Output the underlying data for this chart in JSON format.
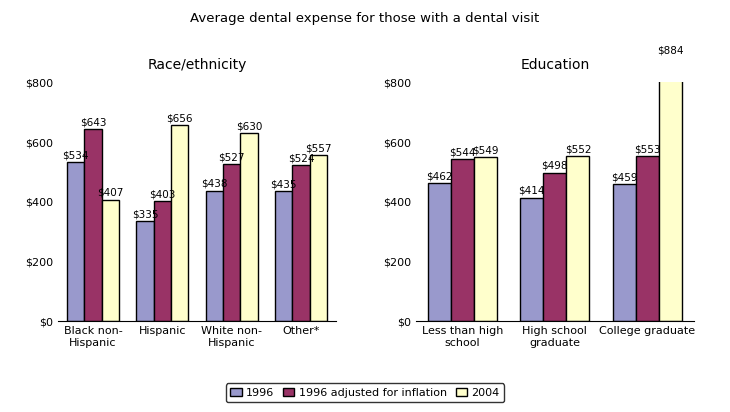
{
  "title": "Average dental expense for those with a dental visit",
  "left_subtitle": "Race/ethnicity",
  "right_subtitle": "Education",
  "left_categories": [
    "Black non-\nHispanic",
    "Hispanic",
    "White non-\nHispanic",
    "Other*"
  ],
  "right_categories": [
    "Less than high\nschool",
    "High school\ngraduate",
    "College graduate"
  ],
  "left_values": {
    "1996": [
      534,
      335,
      438,
      435
    ],
    "1996_adjusted": [
      643,
      403,
      527,
      524
    ],
    "2004": [
      407,
      656,
      630,
      557
    ]
  },
  "right_values": {
    "1996": [
      462,
      414,
      459
    ],
    "1996_adjusted": [
      544,
      498,
      553
    ],
    "2004": [
      549,
      552,
      884
    ]
  },
  "bar_colors": [
    "#9999cc",
    "#993366",
    "#ffffcc"
  ],
  "bar_edge_color": "#000000",
  "bar_edge_width": 1.0,
  "legend_labels": [
    "1996",
    "1996 adjusted for inflation",
    "2004"
  ],
  "left_ylim": [
    0,
    800
  ],
  "right_ylim": [
    0,
    800
  ],
  "yticks": [
    0,
    200,
    400,
    600,
    800
  ],
  "ytick_labels": [
    "$0",
    "$200",
    "$400",
    "$600",
    "$800"
  ],
  "bar_width": 0.25,
  "label_fontsize": 7.5,
  "title_fontsize": 9.5,
  "subtitle_fontsize": 10,
  "axis_fontsize": 8,
  "legend_fontsize": 8,
  "background_color": "#ffffff"
}
